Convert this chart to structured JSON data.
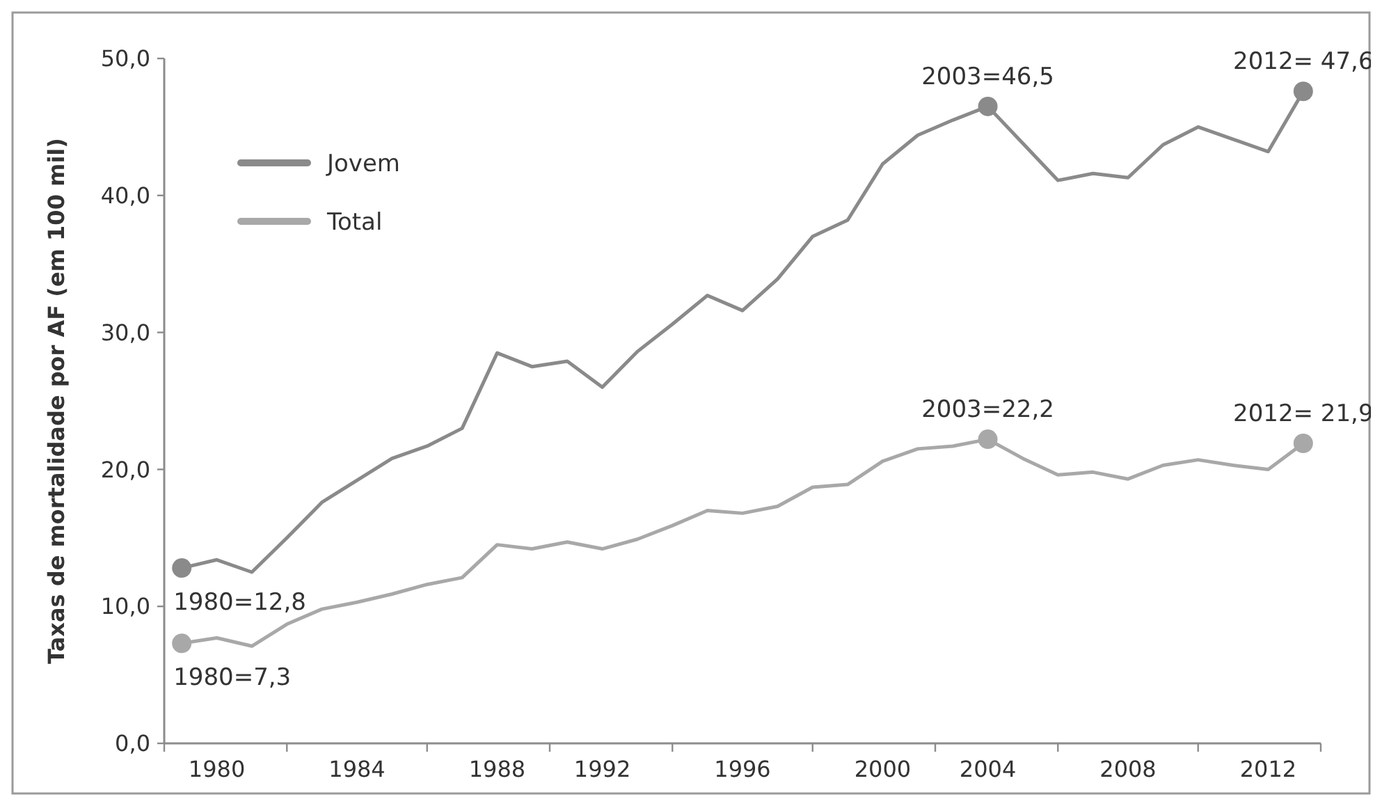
{
  "chart_data": {
    "type": "line",
    "ylabel": "Taxas de mortalidade por AF (em 100 mil)",
    "categories": [
      null,
      "1980",
      null,
      null,
      null,
      "1984",
      null,
      null,
      null,
      "1988",
      null,
      null,
      "1992",
      null,
      null,
      null,
      "1996",
      null,
      null,
      null,
      "2000",
      null,
      null,
      "2004",
      null,
      null,
      null,
      "2008",
      null,
      null,
      null,
      "2012",
      null
    ],
    "series": [
      {
        "name": "Jovem",
        "color": "#8a8a8a",
        "values": [
          12.8,
          13.4,
          12.5,
          15.0,
          17.6,
          19.2,
          20.8,
          21.7,
          23.0,
          28.5,
          27.5,
          27.9,
          26.0,
          28.6,
          30.6,
          32.7,
          31.6,
          33.9,
          37.0,
          38.2,
          42.3,
          44.4,
          45.5,
          46.5,
          43.8,
          41.1,
          41.6,
          41.3,
          43.7,
          45.0,
          44.1,
          43.2,
          47.6
        ]
      },
      {
        "name": "Total",
        "color": "#a8a8a8",
        "values": [
          7.3,
          7.7,
          7.1,
          8.7,
          9.8,
          10.3,
          10.9,
          11.6,
          12.1,
          14.5,
          14.2,
          14.7,
          14.2,
          14.9,
          15.9,
          17.0,
          16.8,
          17.3,
          18.7,
          18.9,
          20.6,
          21.5,
          21.7,
          22.2,
          20.8,
          19.6,
          19.8,
          19.3,
          20.3,
          20.7,
          20.3,
          20.0,
          21.9
        ]
      }
    ],
    "ylim": [
      0,
      50
    ],
    "yticks": [
      {
        "value": 0,
        "label": "0,0"
      },
      {
        "value": 10,
        "label": "10,0"
      },
      {
        "value": 20,
        "label": "20,0"
      },
      {
        "value": 30,
        "label": "30,0"
      },
      {
        "value": 40,
        "label": "40,0"
      },
      {
        "value": 50,
        "label": "50,0"
      }
    ],
    "grid": false,
    "legend": "top left",
    "marker": "none",
    "line_style": "solid",
    "annotations": [
      {
        "text": "1980=12,8",
        "y": 12.8
      },
      {
        "text": "1980=7,3",
        "y": 7.3
      },
      {
        "text": "2003=46,5",
        "y": 46.5
      },
      {
        "text": "2003=22,2",
        "y": 22.2
      },
      {
        "text": "2012= 47,6",
        "y": 47.6
      },
      {
        "text": "2012= 21,9",
        "y": 21.9
      }
    ]
  }
}
